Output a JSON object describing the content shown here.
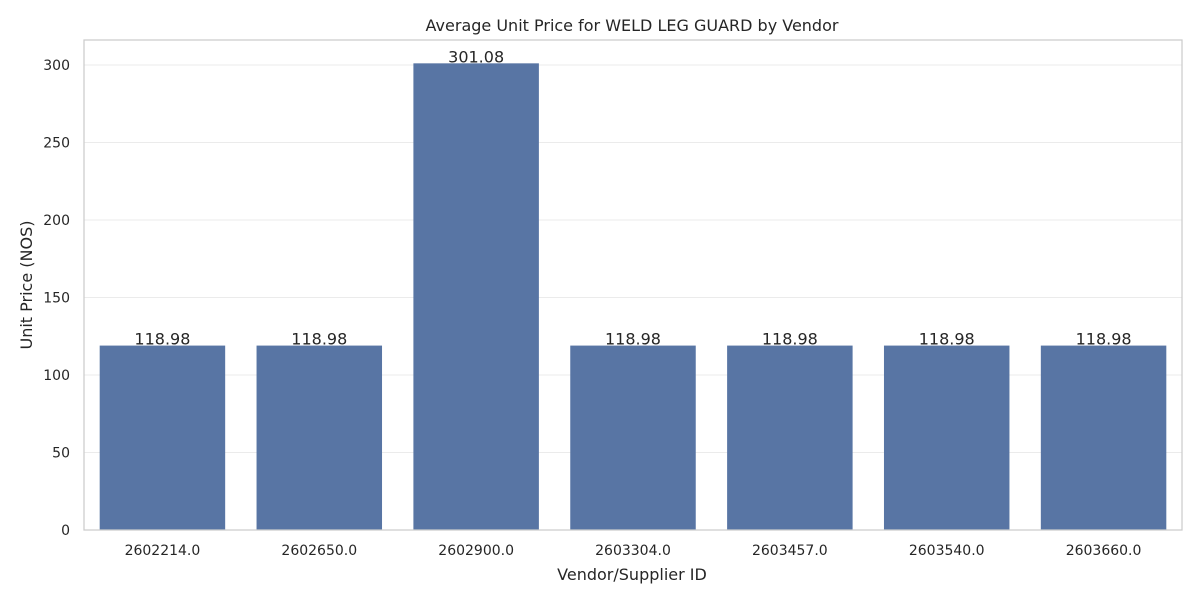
{
  "chart_data": {
    "type": "bar",
    "title": "Average Unit Price for WELD LEG GUARD by Vendor",
    "xlabel": "Vendor/Supplier ID",
    "ylabel": "Unit Price (NOS)",
    "categories": [
      "2602214.0",
      "2602650.0",
      "2602900.0",
      "2603304.0",
      "2603457.0",
      "2603540.0",
      "2603660.0"
    ],
    "values": [
      118.98,
      118.98,
      301.08,
      118.98,
      118.98,
      118.98,
      118.98
    ],
    "data_labels": [
      "118.98",
      "118.98",
      "301.08",
      "118.98",
      "118.98",
      "118.98",
      "118.98"
    ],
    "ylim": [
      0,
      316.134
    ],
    "yticks": [
      0,
      50,
      100,
      150,
      200,
      250,
      300
    ],
    "grid": true,
    "legend": "none",
    "colors": {
      "bar": "#5875a4",
      "grid": "#ebebeb",
      "spine": "#cccccc",
      "text": "#262626",
      "background": "#ffffff"
    }
  }
}
